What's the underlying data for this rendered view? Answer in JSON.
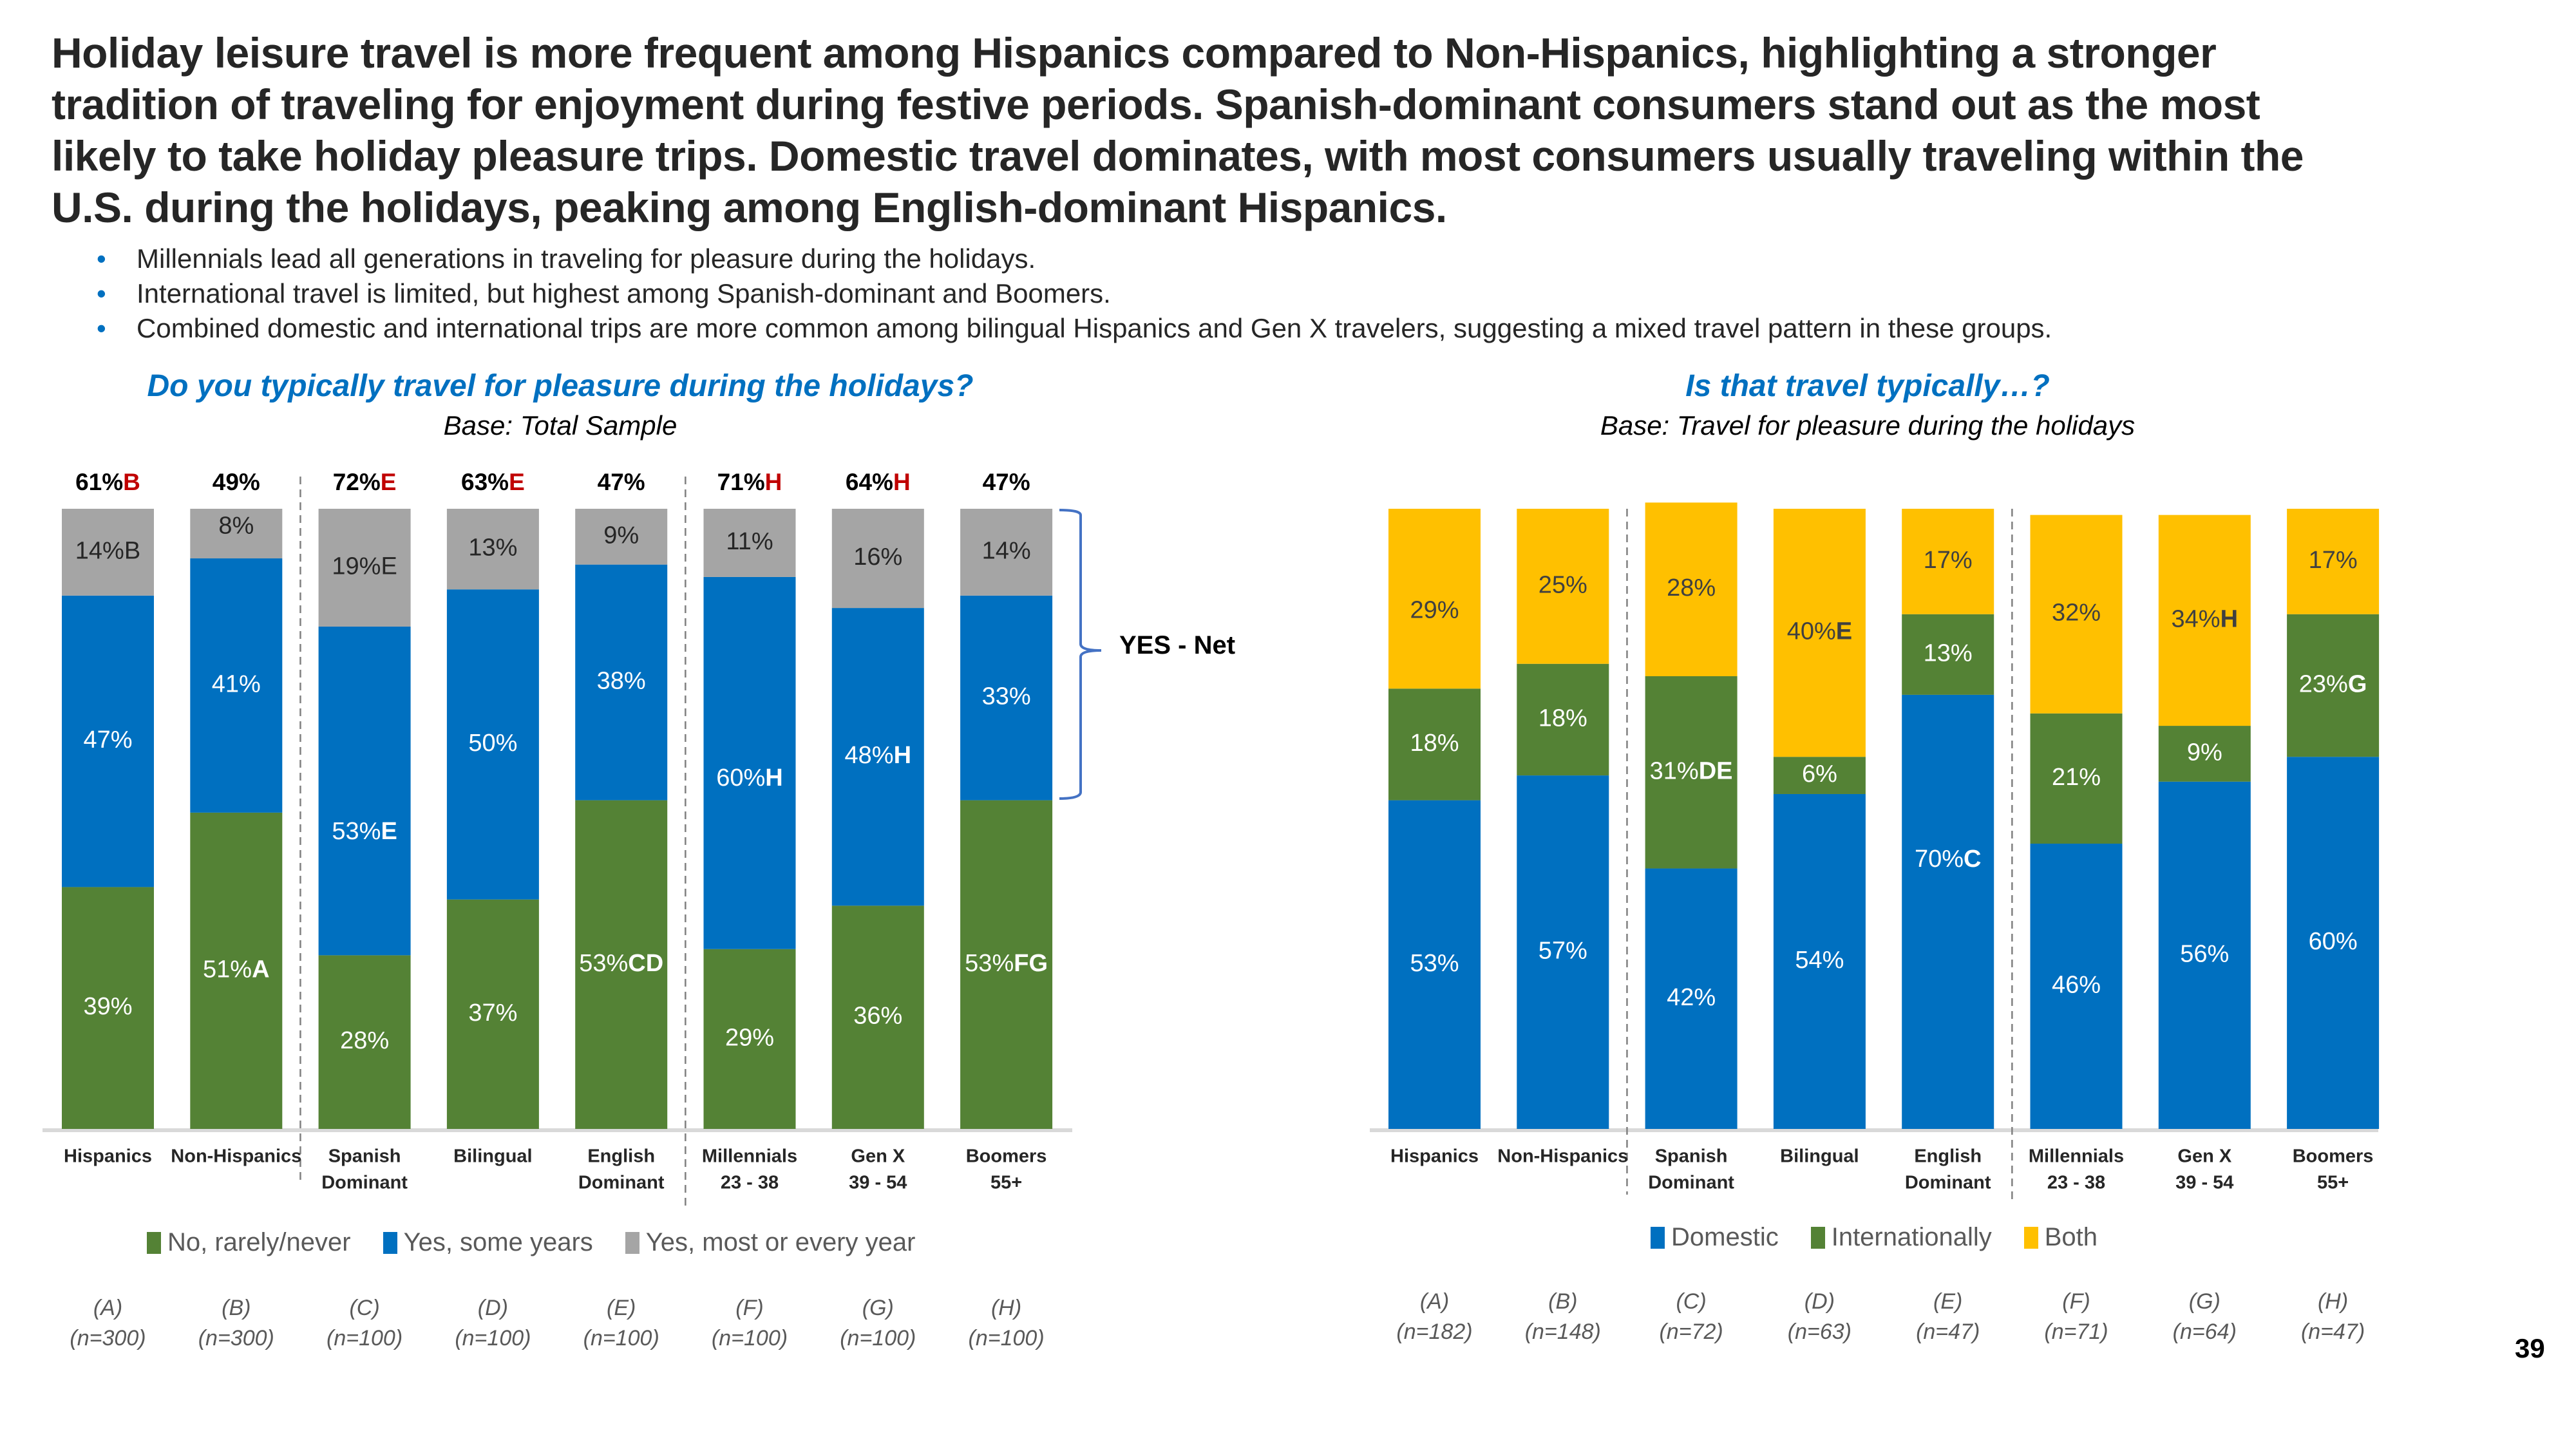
{
  "headline": "Holiday leisure travel is more frequent among Hispanics compared to Non-Hispanics, highlighting a stronger tradition of traveling for enjoyment during festive periods. Spanish-dominant consumers stand out as the most likely to take holiday pleasure trips.  Domestic travel dominates, with most consumers usually traveling within the U.S. during the holidays, peaking among English-dominant Hispanics.",
  "headline_lines": [
    "Holiday leisure travel is more frequent among Hispanics compared to Non-Hispanics, highlighting a stronger",
    "tradition of traveling for enjoyment during festive periods. Spanish-dominant consumers stand out as the most",
    "likely to take holiday pleasure trips.  Domestic travel dominates, with most consumers usually traveling within the",
    "U.S. during the holidays, peaking among English-dominant Hispanics."
  ],
  "bullets": [
    "Millennials lead all generations in traveling for pleasure during the holidays.",
    "International travel is limited, but highest among Spanish-dominant  and Boomers.",
    "Combined domestic and international trips are more common among bilingual Hispanics and Gen X travelers, suggesting a mixed travel pattern in these groups."
  ],
  "bullet_glyph": "•",
  "page_number": "39",
  "colors": {
    "green": "#548235",
    "blue": "#0070c0",
    "gray": "#a5a5a5",
    "gold": "#ffc000",
    "accent_text": "#0070c0",
    "sig_red": "#c00000"
  },
  "chart_data": [
    {
      "type": "bar",
      "stacked": true,
      "title": "Do you typically travel for pleasure during the holidays?",
      "subtitle": "Base: Total Sample",
      "xlabel": "",
      "ylabel": "",
      "ylim": [
        0,
        100
      ],
      "grid": false,
      "legend_position": "bottom",
      "categories": [
        [
          "Hispanics"
        ],
        [
          "Non-Hispanics"
        ],
        [
          "Spanish",
          "Dominant"
        ],
        [
          "Bilingual"
        ],
        [
          "English",
          "Dominant"
        ],
        [
          "Millennials",
          "23 - 38"
        ],
        [
          "Gen X",
          "39 - 54"
        ],
        [
          "Boomers",
          "55+"
        ]
      ],
      "group_letters": [
        "(A)",
        "(B)",
        "(C)",
        "(D)",
        "(E)",
        "(F)",
        "(G)",
        "(H)"
      ],
      "base_sizes": [
        "(n=300)",
        "(n=300)",
        "(n=100)",
        "(n=100)",
        "(n=100)",
        "(n=100)",
        "(n=100)",
        "(n=100)"
      ],
      "group_separators_after": [
        1,
        4
      ],
      "series": [
        {
          "name": "No, rarely/never",
          "color": "#548235",
          "label_color": "#ffffff",
          "values": [
            39,
            51,
            28,
            37,
            53,
            29,
            36,
            53
          ],
          "sig": [
            "",
            "A",
            "",
            "",
            "CD",
            "",
            "",
            "FG"
          ]
        },
        {
          "name": "Yes, some years",
          "color": "#0070c0",
          "label_color": "#ffffff",
          "values": [
            47,
            41,
            53,
            50,
            38,
            60,
            48,
            33
          ],
          "sig": [
            "",
            "",
            "E",
            "",
            "",
            "H",
            "H",
            ""
          ]
        },
        {
          "name": "Yes, most or every year",
          "color": "#a5a5a5",
          "label_color": "#262626",
          "values": [
            14,
            8,
            19,
            13,
            9,
            11,
            16,
            14
          ],
          "sig": [
            "B",
            "",
            "E",
            "",
            "",
            "",
            "",
            ""
          ],
          "sig_bold": false
        }
      ],
      "net": {
        "label": "YES - Net",
        "values": [
          61,
          49,
          72,
          63,
          47,
          71,
          64,
          47
        ],
        "sig": [
          "B",
          "",
          "E",
          "E",
          "",
          "H",
          "H",
          ""
        ]
      }
    },
    {
      "type": "bar",
      "stacked": true,
      "title": "Is that travel typically…?",
      "subtitle": "Base: Travel for pleasure during the holidays",
      "xlabel": "",
      "ylabel": "",
      "ylim": [
        0,
        100
      ],
      "grid": false,
      "legend_position": "bottom",
      "categories": [
        [
          "Hispanics"
        ],
        [
          "Non-Hispanics"
        ],
        [
          "Spanish",
          "Dominant"
        ],
        [
          "Bilingual"
        ],
        [
          "English",
          "Dominant"
        ],
        [
          "Millennials",
          "23 - 38"
        ],
        [
          "Gen X",
          "39 - 54"
        ],
        [
          "Boomers",
          "55+"
        ]
      ],
      "group_letters": [
        "(A)",
        "(B)",
        "(C)",
        "(D)",
        "(E)",
        "(F)",
        "(G)",
        "(H)"
      ],
      "base_sizes": [
        "(n=182)",
        "(n=148)",
        "(n=72)",
        "(n=63)",
        "(n=47)",
        "(n=71)",
        "(n=64)",
        "(n=47)"
      ],
      "group_separators_after": [
        1,
        4
      ],
      "series": [
        {
          "name": "Domestic",
          "color": "#0070c0",
          "label_color": "#ffffff",
          "values": [
            53,
            57,
            42,
            54,
            70,
            46,
            56,
            60
          ],
          "sig": [
            "",
            "",
            "",
            "",
            "C",
            "",
            "",
            ""
          ]
        },
        {
          "name": "Internationally",
          "color": "#548235",
          "label_color": "#ffffff",
          "values": [
            18,
            18,
            31,
            6,
            13,
            21,
            9,
            23
          ],
          "sig": [
            "",
            "",
            "DE",
            "",
            "",
            "",
            "",
            "G"
          ]
        },
        {
          "name": "Both",
          "color": "#ffc000",
          "label_color": "#404040",
          "values": [
            29,
            25,
            28,
            40,
            17,
            32,
            34,
            17
          ],
          "sig": [
            "",
            "",
            "",
            "E",
            "",
            "",
            "H",
            ""
          ]
        }
      ]
    }
  ]
}
